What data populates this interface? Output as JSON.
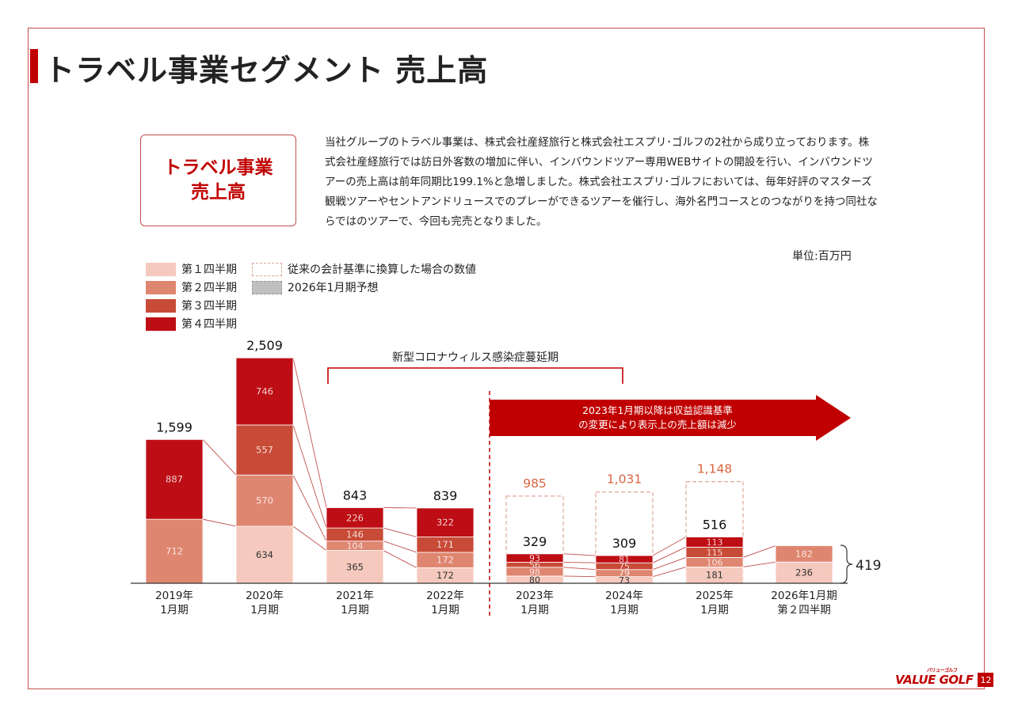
{
  "title": "トラベル事業セグメント 売上高",
  "label_box": {
    "line1": "トラベル事業",
    "line2": "売上高"
  },
  "description": "当社グループのトラベル事業は、株式会社産経旅行と株式会社エスプリ･ゴルフの2社から成り立っております。株式会社産経旅行では訪日外客数の増加に伴い、インバウンドツアー専用WEBサイトの開設を行い、インバウンドツアーの売上高は前年同期比199.1%と急増しました。株式会社エスプリ･ゴルフにおいては、毎年好評のマスターズ観戦ツアーやセントアンドリュースでのプレーができるツアーを催行し、海外名門コースとのつながりを持つ同社ならではのツアーで、今回も完売となりました。",
  "unit": "単位:百万円",
  "legend": {
    "q1": "第１四半期",
    "q2": "第２四半期",
    "q3": "第３四半期",
    "q4": "第４四半期",
    "conventional": "従来の会計基準に換算した場合の数値",
    "forecast": "2026年1月期予想"
  },
  "colors": {
    "q1": "#f5c9bd",
    "q2": "#df8671",
    "q3": "#c84b38",
    "q4": "#be0e15",
    "accent": "#c00000",
    "forecast": "#c0c0c0",
    "conventional_text": "#d9643f"
  },
  "covid_label": "新型コロナウィルス感染症蔓延期",
  "arrow_text": {
    "line1": "2023年1月期以降は収益認識基準",
    "line2": "の変更により表示上の売上額は減少"
  },
  "logo": {
    "text": "VALUE GOLF",
    "kana": "バリューゴルフ"
  },
  "page_number": "12",
  "chart_data": {
    "type": "bar",
    "stacked": true,
    "categories": [
      [
        "2019年",
        "1月期"
      ],
      [
        "2020年",
        "1月期"
      ],
      [
        "2021年",
        "1月期"
      ],
      [
        "2022年",
        "1月期"
      ],
      [
        "2023年",
        "1月期"
      ],
      [
        "2024年",
        "1月期"
      ],
      [
        "2025年",
        "1月期"
      ],
      [
        "2026年1月期",
        "第２四半期"
      ]
    ],
    "series": [
      {
        "name": "第１四半期",
        "values": [
          null,
          634,
          365,
          172,
          80,
          73,
          181,
          236
        ]
      },
      {
        "name": "第２四半期",
        "values": [
          712,
          570,
          104,
          172,
          98,
          79,
          106,
          182
        ]
      },
      {
        "name": "第３四半期",
        "values": [
          null,
          557,
          146,
          171,
          56,
          75,
          115,
          null
        ]
      },
      {
        "name": "第４四半期",
        "values": [
          887,
          746,
          226,
          322,
          93,
          81,
          113,
          null
        ]
      }
    ],
    "totals": [
      "1,599",
      "2,509",
      "843",
      "839",
      "329",
      "309",
      "516",
      null
    ],
    "conventional_totals": [
      null,
      null,
      null,
      null,
      "985",
      "1,031",
      "1,148",
      null
    ],
    "conventional_values": [
      null,
      null,
      null,
      null,
      985,
      1031,
      1148,
      null
    ],
    "forecast_total": "419",
    "forecast_value": 419,
    "ylim": [
      0,
      2509
    ]
  }
}
